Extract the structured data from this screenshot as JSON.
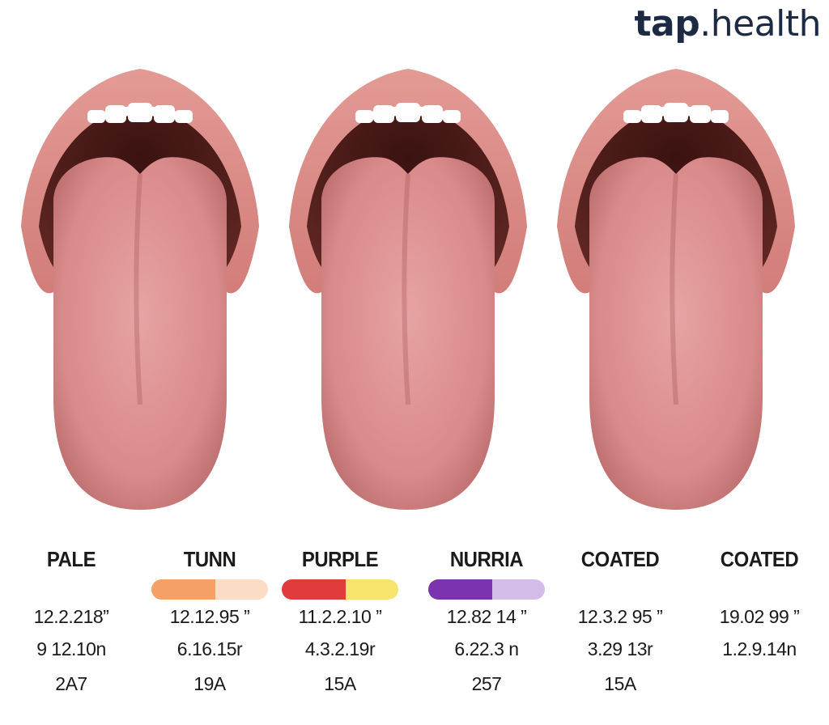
{
  "brand": {
    "prefix": "tap",
    "suffix": ".health"
  },
  "columns": [
    {
      "label": "PALE",
      "line1": "12.2.218”",
      "line2": "9 12.10n",
      "line3": "2A7"
    },
    {
      "label": "TUNN",
      "line1": "12.12.95 ”",
      "line2": "6.16.15r",
      "line3": "19A",
      "bar": {
        "left": "#f4a067",
        "right": "#fbdcc4",
        "left_fraction": 0.55
      }
    },
    {
      "label": "PURPLE",
      "line1": "11.2.2.10 ”",
      "line2": "4.3.2.19r",
      "line3": "15A",
      "bar": {
        "left": "#e23b3b",
        "right": "#f7e46c",
        "left_fraction": 0.55
      }
    },
    {
      "label": "NURRIA",
      "line1": "12.82 14 ”",
      "line2": "6.22.3 n",
      "line3": "257",
      "bar": {
        "left": "#7b33b0",
        "right": "#d4bce8",
        "left_fraction": 0.55
      }
    },
    {
      "label": "COATED",
      "line1": "12.3.2 95 ”",
      "line2": "3.29 13r",
      "line3": "15A"
    },
    {
      "label": "COATED",
      "line1": "19.02 99 ”",
      "line2": "1.2.9.14n",
      "line3": ""
    }
  ],
  "colors": {
    "lips": "#d27d79",
    "tongue": "#d98a8a",
    "mouth": "#5e2622",
    "teeth": "#ffffff"
  }
}
